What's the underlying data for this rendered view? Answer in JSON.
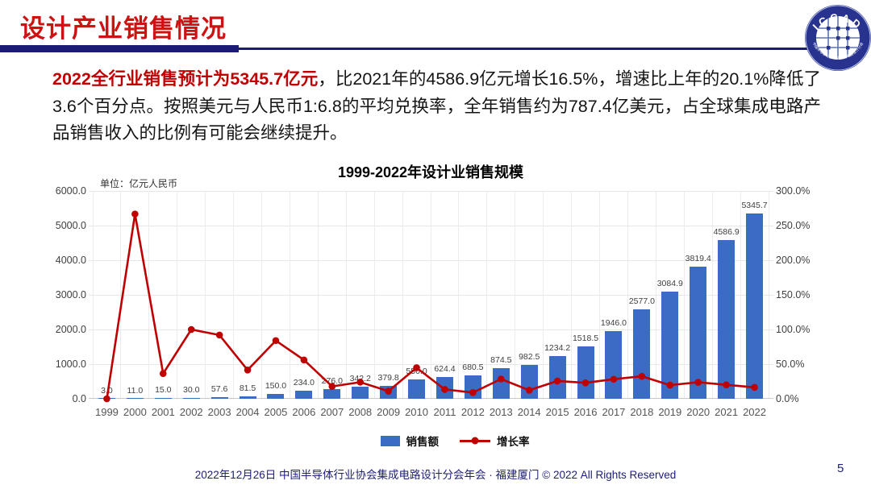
{
  "slide": {
    "header": {
      "title": "设计产业销售情况"
    },
    "logo": {
      "top_text": "ICCAD",
      "bottom_text": "中国半导体行业协会集成电路设计分会"
    },
    "paragraph": {
      "highlight": "2022全行业销售预计为5345.7亿元",
      "body": "，比2021年的4586.9亿元增长16.5%，增速比上年的20.1%降低了3.6个百分点。按照美元与人民币1:6.8的平均兑换率，全年销售约为787.4亿美元，占全球集成电路产品销售收入的比例有可能会继续提升。"
    },
    "footer": {
      "text": "2022年12月26日 中国半导体行业协会集成电路设计分会年会 · 福建厦门 © 2022 All Rights Reserved",
      "page_number": "5"
    }
  },
  "colors": {
    "header_red": "#CE1212",
    "highlight_red": "#C00000",
    "navy": "#1B1B75",
    "bar_blue": "#3A6BC5",
    "line_red": "#C00000",
    "footer_navy": "#20207A"
  },
  "chart_data": {
    "type": "bar",
    "title": "1999-2022年设计业销售规模",
    "unit_label": "单位：亿元人民币",
    "categories": [
      "1999",
      "2000",
      "2001",
      "2002",
      "2003",
      "2004",
      "2005",
      "2006",
      "2007",
      "2008",
      "2009",
      "2010",
      "2011",
      "2012",
      "2013",
      "2014",
      "2015",
      "2016",
      "2017",
      "2018",
      "2019",
      "2020",
      "2021",
      "2022"
    ],
    "series": [
      {
        "name": "销售额",
        "type": "bar",
        "axis": "left",
        "color": "#3A6BC5",
        "values": [
          3.0,
          11.0,
          15.0,
          30.0,
          57.6,
          81.5,
          150.0,
          234.0,
          276.0,
          342.2,
          379.8,
          550.0,
          624.4,
          680.5,
          874.5,
          982.5,
          1234.2,
          1518.5,
          1946.0,
          2577.0,
          3084.9,
          3819.4,
          4586.9,
          5345.7
        ],
        "labels": [
          "3.0",
          "11.0",
          "15.0",
          "30.0",
          "57.6",
          "81.5",
          "150.0",
          "234.0",
          "276.0",
          "342.2",
          "379.8",
          "550.0",
          "624.4",
          "680.5",
          "874.5",
          "982.5",
          "1234.2",
          "1518.5",
          "1946.0",
          "2577.0",
          "3084.9",
          "3819.4",
          "4586.9",
          "5345.7"
        ]
      },
      {
        "name": "增长率",
        "type": "line",
        "axis": "right",
        "color": "#C00000",
        "values_percent": [
          0.0,
          266.7,
          36.4,
          100.0,
          92.0,
          41.5,
          84.0,
          56.0,
          17.9,
          24.0,
          11.0,
          44.8,
          13.5,
          9.0,
          28.5,
          12.3,
          25.6,
          23.0,
          28.2,
          32.4,
          19.7,
          23.8,
          20.1,
          16.5
        ]
      }
    ],
    "left_axis": {
      "min": 0,
      "max": 6000,
      "step": 1000,
      "ticks": [
        "0.0",
        "1000.0",
        "2000.0",
        "3000.0",
        "4000.0",
        "5000.0",
        "6000.0"
      ]
    },
    "right_axis": {
      "min": 0,
      "max": 300,
      "step": 50,
      "ticks": [
        "0.0%",
        "50.0%",
        "100.0%",
        "150.0%",
        "200.0%",
        "250.0%",
        "300.0%"
      ]
    },
    "legend": {
      "position": "bottom",
      "items": [
        "销售额",
        "增长率"
      ]
    },
    "grid": true
  }
}
